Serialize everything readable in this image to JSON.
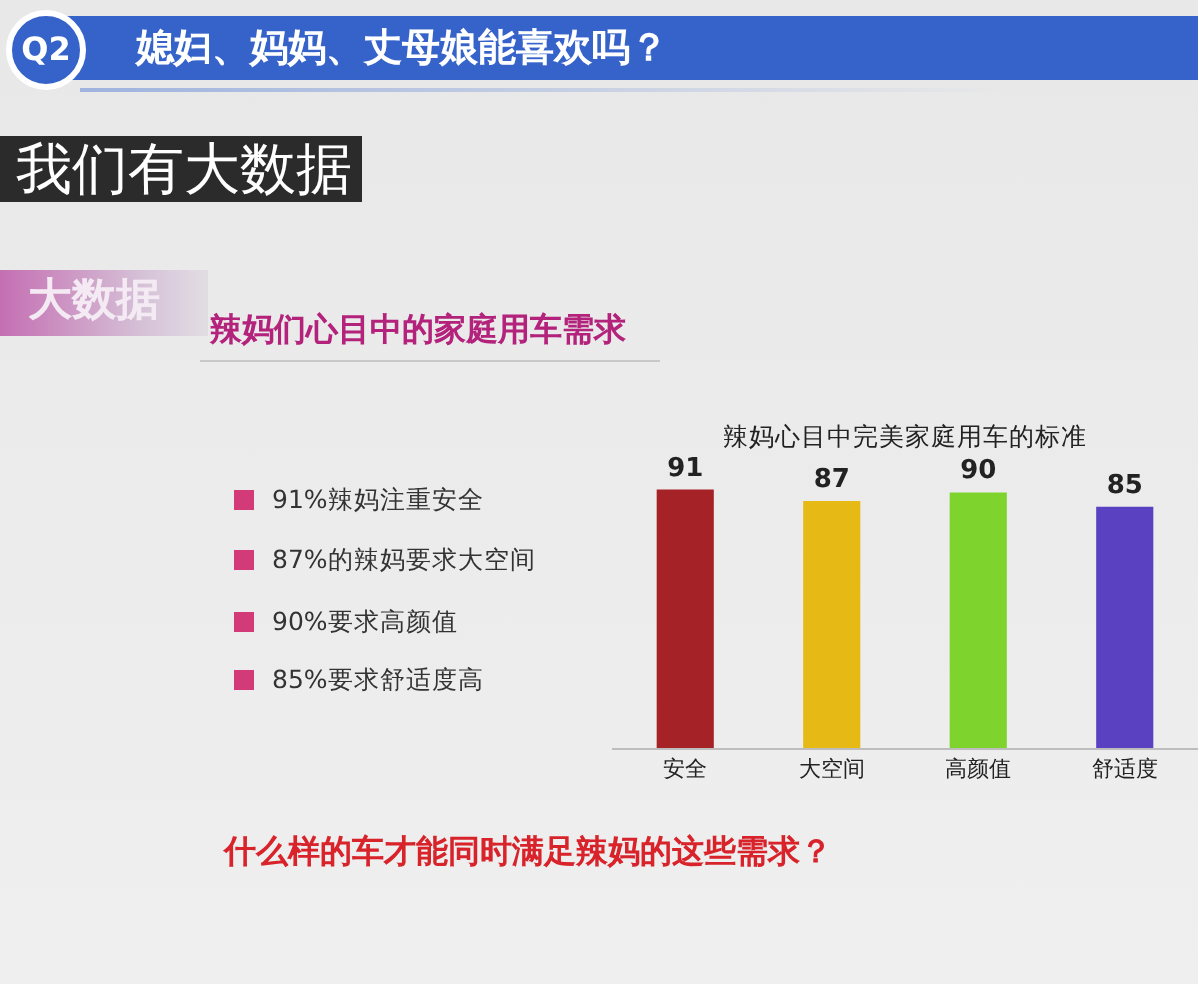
{
  "chart_data": {
    "type": "bar",
    "title": "辣妈心目中完美家庭用车的标准",
    "categories": [
      "安全",
      "大空间",
      "高颜值",
      "舒适度"
    ],
    "values": [
      91,
      87,
      90,
      85
    ],
    "colors": [
      "#a52327",
      "#e6b914",
      "#7ed32c",
      "#5a41c2"
    ],
    "data_labels": true,
    "tick_labels": "x",
    "annotations": [
      "Q2",
      "媳妇、妈妈、丈母娘能喜欢吗？",
      "我们有大数据",
      "大数据",
      "辣妈们心目中的家庭用车需求",
      "91%辣妈注重安全",
      "87%的辣妈要求大空间",
      "90%要求高颜值",
      "85%要求舒适度高",
      "什么样的车才能同时满足辣妈的这些需求？"
    ]
  }
}
